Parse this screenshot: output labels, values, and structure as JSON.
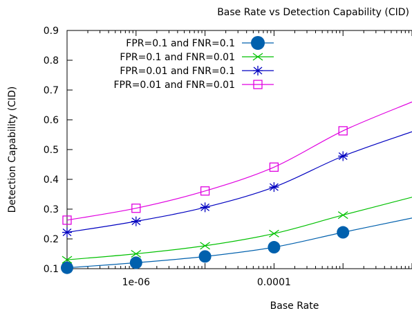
{
  "chart_data": {
    "type": "line",
    "title": "Base Rate vs Detection Capability (CID)",
    "xlabel": "Base Rate",
    "ylabel": "Detection Capability (CID)",
    "x_scale": "log",
    "xlim": [
      1e-07,
      0.01
    ],
    "ylim": [
      0.1,
      0.9
    ],
    "x_ticks": [
      {
        "value": 1e-06,
        "label": "1e-06"
      },
      {
        "value": 0.0001,
        "label": "0.0001"
      }
    ],
    "y_ticks": [
      {
        "value": 0.1,
        "label": "0.1"
      },
      {
        "value": 0.2,
        "label": "0.2"
      },
      {
        "value": 0.3,
        "label": "0.3"
      },
      {
        "value": 0.4,
        "label": "0.4"
      },
      {
        "value": 0.5,
        "label": "0.5"
      },
      {
        "value": 0.6,
        "label": "0.6"
      },
      {
        "value": 0.7,
        "label": "0.7"
      },
      {
        "value": 0.8,
        "label": "0.8"
      },
      {
        "value": 0.9,
        "label": "0.9"
      }
    ],
    "grid": false,
    "legend_position": "top-left",
    "x": [
      1e-07,
      1e-06,
      1e-05,
      0.0001,
      0.001
    ],
    "series": [
      {
        "name": "FPR=0.1 and FNR=0.1",
        "marker": "filled-circle",
        "color": "#0060ad",
        "values": [
          0.103,
          0.12,
          0.141,
          0.172,
          0.222
        ],
        "curve": [
          [
            1e-07,
            0.103
          ],
          [
            1e-06,
            0.12
          ],
          [
            1e-05,
            0.141
          ],
          [
            0.0001,
            0.172
          ],
          [
            0.001,
            0.222
          ],
          [
            0.01,
            0.27
          ]
        ]
      },
      {
        "name": "FPR=0.1 and FNR=0.01",
        "marker": "cross",
        "color": "#00c000",
        "values": [
          0.13,
          0.15,
          0.177,
          0.218,
          0.28
        ],
        "curve": [
          [
            1e-07,
            0.13
          ],
          [
            1e-06,
            0.15
          ],
          [
            1e-05,
            0.177
          ],
          [
            0.0001,
            0.218
          ],
          [
            0.001,
            0.28
          ],
          [
            0.01,
            0.34
          ]
        ]
      },
      {
        "name": "FPR=0.01 and FNR=0.1",
        "marker": "star",
        "color": "#0000c0",
        "values": [
          0.222,
          0.259,
          0.306,
          0.374,
          0.478
        ],
        "curve": [
          [
            1e-07,
            0.222
          ],
          [
            1e-06,
            0.259
          ],
          [
            1e-05,
            0.306
          ],
          [
            0.0001,
            0.374
          ],
          [
            0.001,
            0.478
          ],
          [
            0.01,
            0.56
          ]
        ]
      },
      {
        "name": "FPR=0.01 and FNR=0.01",
        "marker": "open-square",
        "color": "#e000e0",
        "values": [
          0.263,
          0.303,
          0.361,
          0.441,
          0.563
        ],
        "curve": [
          [
            1e-07,
            0.263
          ],
          [
            1e-06,
            0.303
          ],
          [
            1e-05,
            0.361
          ],
          [
            0.0001,
            0.441
          ],
          [
            0.001,
            0.563
          ],
          [
            0.01,
            0.66
          ]
        ]
      }
    ]
  }
}
